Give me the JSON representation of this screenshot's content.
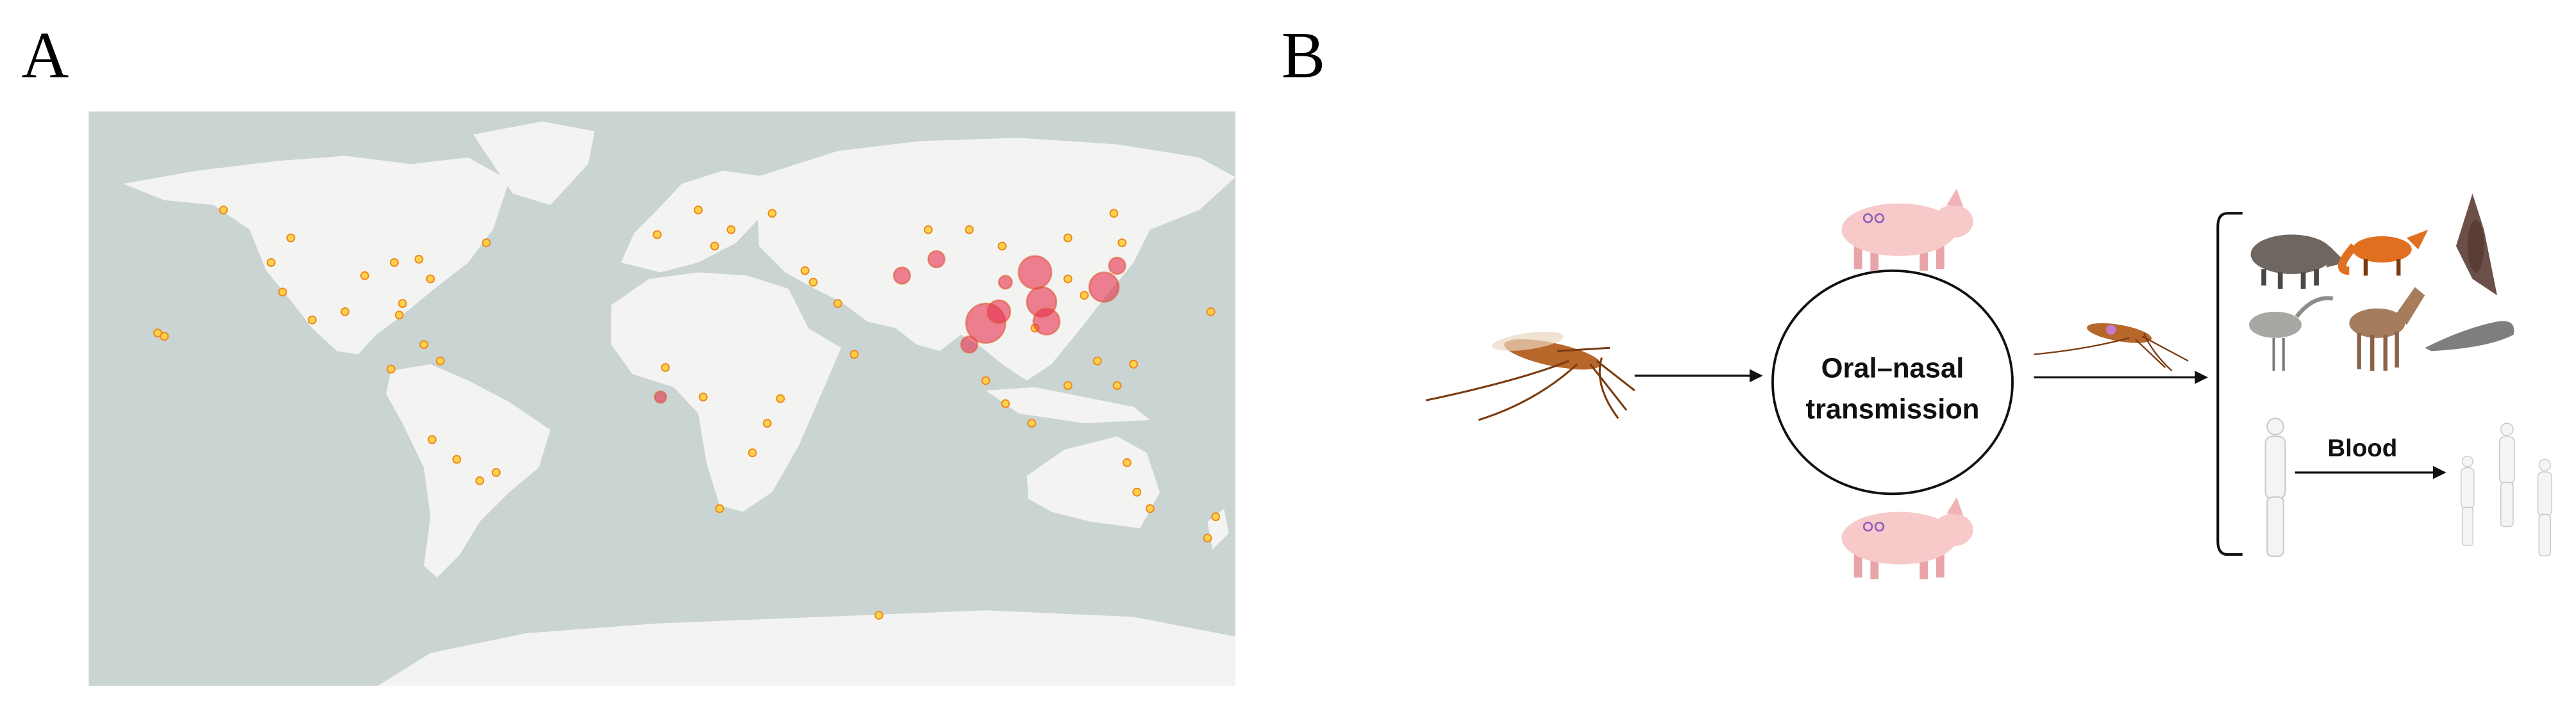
{
  "panels": [
    {
      "label": "A"
    },
    {
      "label": "B",
      "center": {
        "lines": [
          "Oral–nasal",
          "transmission"
        ]
      },
      "arrow_label": "Blood"
    }
  ]
}
